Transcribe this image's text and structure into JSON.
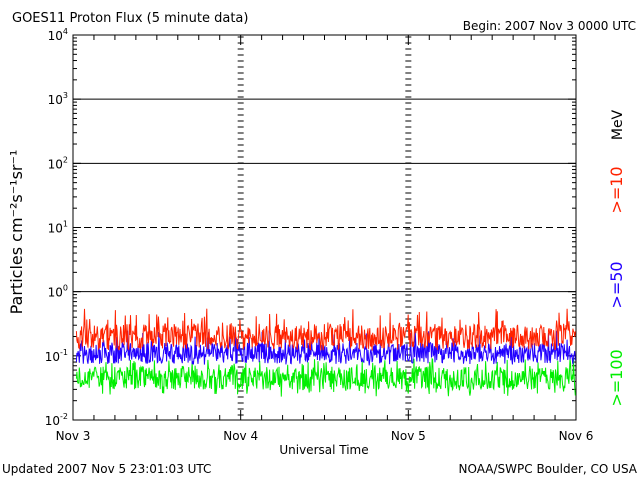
{
  "chart_data": {
    "type": "line",
    "title": "GOES11 Proton Flux (5 minute data)",
    "begin_label": "Begin: 2007 Nov 3 0000 UTC",
    "xlabel": "Universal Time",
    "ylabel": "Particles cm⁻²s⁻¹sr⁻¹",
    "units_label": "MeV",
    "y_scale": "log",
    "ylim": [
      0.01,
      10000
    ],
    "x_ticks": [
      "Nov 3",
      "Nov 4",
      "Nov 5",
      "Nov 6"
    ],
    "xlim_days": [
      0,
      3
    ],
    "y_ticks": [
      {
        "base": "10",
        "exp": "-2"
      },
      {
        "base": "10",
        "exp": "-1"
      },
      {
        "base": "10",
        "exp": "0"
      },
      {
        "base": "10",
        "exp": "1"
      },
      {
        "base": "10",
        "exp": "2"
      },
      {
        "base": "10",
        "exp": "3"
      },
      {
        "base": "10",
        "exp": "4"
      }
    ],
    "threshold_lines": [
      {
        "value": 1,
        "style": "solid"
      },
      {
        "value": 10,
        "style": "dashed"
      },
      {
        "value": 100,
        "style": "solid"
      },
      {
        "value": 1000,
        "style": "solid"
      }
    ],
    "series": [
      {
        "name": ">=10",
        "color": "#ff2200",
        "baseline": 0.2,
        "min": 0.12,
        "max": 0.55
      },
      {
        "name": ">=50",
        "color": "#2200ff",
        "baseline": 0.11,
        "min": 0.07,
        "max": 0.25
      },
      {
        "name": ">=100",
        "color": "#00ee00",
        "baseline": 0.045,
        "min": 0.023,
        "max": 0.09
      }
    ],
    "grid": false
  },
  "footer": {
    "updated": "Updated 2007 Nov  5 23:01:03 UTC",
    "source": "NOAA/SWPC Boulder, CO USA"
  }
}
